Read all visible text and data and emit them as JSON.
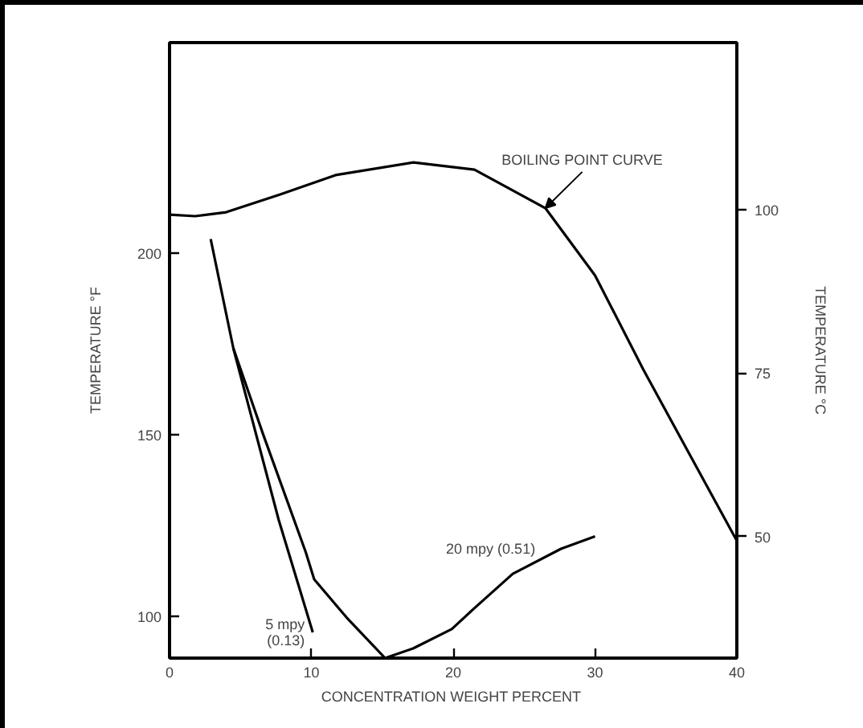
{
  "chart_data": {
    "type": "line",
    "xlabel": "CONCENTRATION  WEIGHT PERCENT",
    "ylabel": "TEMPERATURE °F",
    "y2label": "TEMPERATURE °C",
    "xlim": [
      0,
      40
    ],
    "xticks": [
      0,
      10,
      20,
      30,
      40
    ],
    "ylim": [
      88.5,
      258
    ],
    "yticks": [
      100,
      150,
      200
    ],
    "y2lim": [
      31.4,
      125.6
    ],
    "y2ticks": [
      50,
      75,
      100
    ],
    "grid": false,
    "line_style": "solid",
    "series": [
      {
        "name": "BOILING POINT CURVE",
        "color": "#000000",
        "x": [
          0,
          1.8,
          4.0,
          7.8,
          11.7,
          17.2,
          21.5,
          26.5,
          30.0,
          33.4,
          36.6,
          40
        ],
        "values": [
          210.6,
          210.2,
          211.3,
          216.2,
          221.5,
          225,
          223,
          212.4,
          193.9,
          168,
          145.1,
          120.8
        ]
      },
      {
        "name": "20 mpy (0.51)",
        "color": "#000000",
        "x": [
          2.9,
          4.5,
          6.6,
          9.6,
          10.2,
          12.5,
          15.2,
          17.2,
          19.9,
          21.4,
          24.2,
          27.6,
          30.0
        ],
        "values": [
          203.9,
          173.8,
          150.1,
          117.7,
          110.2,
          99.6,
          88.5,
          91.2,
          96.5,
          101.9,
          111.7,
          118.6,
          122
        ]
      },
      {
        "name": "5 mpy\n(0.13)",
        "color": "#000000",
        "x": [
          4.5,
          7.7,
          10.1
        ],
        "values": [
          173.8,
          126.5,
          95.6
        ]
      }
    ]
  }
}
